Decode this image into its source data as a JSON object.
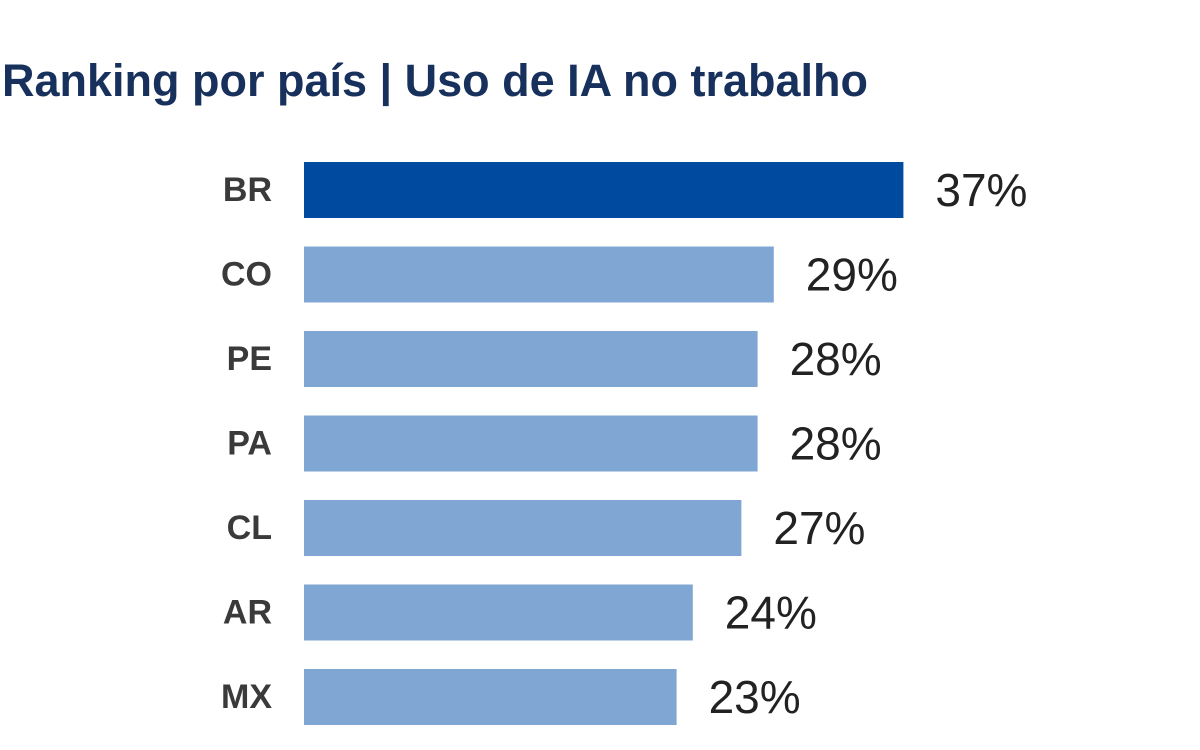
{
  "chart_data": {
    "type": "bar",
    "orientation": "horizontal",
    "title": "Ranking por país | Uso de IA no trabalho",
    "categories": [
      "BR",
      "CO",
      "PE",
      "PA",
      "CL",
      "AR",
      "MX"
    ],
    "values": [
      37,
      29,
      28,
      28,
      27,
      24,
      23
    ],
    "value_labels": [
      "37%",
      "29%",
      "28%",
      "28%",
      "27%",
      "24%",
      "23%"
    ],
    "colors": [
      "#004aa0",
      "#80a7d3",
      "#80a7d3",
      "#80a7d3",
      "#80a7d3",
      "#80a7d3",
      "#80a7d3"
    ]
  }
}
